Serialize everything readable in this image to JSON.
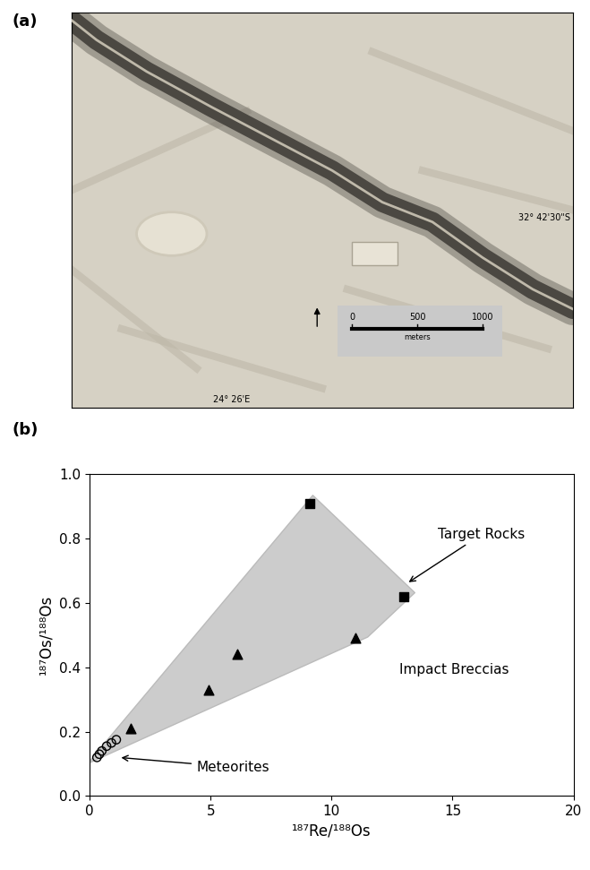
{
  "image_panel": {
    "panel_label": "(a)",
    "latitude_label": "32° 42'30\"S",
    "longitude_label": "24° 26'E",
    "scale_bar": {
      "ticks": [
        0,
        500,
        1000
      ],
      "unit": "meters"
    }
  },
  "chart_data": {
    "type": "scatter",
    "panel_label": "(b)",
    "x_label": "¹⁸⁷Re/¹⁸⁸Os",
    "y_label": "¹⁸⁷Os/¹⁸⁸Os",
    "xlim": [
      0,
      20
    ],
    "xticks": [
      0,
      5,
      10,
      15,
      20
    ],
    "ylim": [
      0.0,
      1.0
    ],
    "yticks": [
      0.0,
      0.2,
      0.4,
      0.6,
      0.8,
      1.0
    ],
    "annotations": [
      "Target Rocks",
      "Impact Breccias",
      "Meteorites"
    ],
    "series": [
      {
        "marker": "square",
        "color": "#000000",
        "x": [
          9.1,
          13.0
        ],
        "values": [
          0.91,
          0.62
        ]
      },
      {
        "marker": "triangle",
        "color": "#000000",
        "x": [
          1.7,
          4.9,
          6.1,
          11.0
        ],
        "values": [
          0.21,
          0.33,
          0.44,
          0.49
        ]
      },
      {
        "marker": "open_circle",
        "color": "#000000",
        "x": [
          0.3,
          0.4,
          0.5,
          0.7,
          0.9,
          1.1
        ],
        "values": [
          0.12,
          0.13,
          0.14,
          0.155,
          0.165,
          0.175
        ]
      }
    ]
  }
}
